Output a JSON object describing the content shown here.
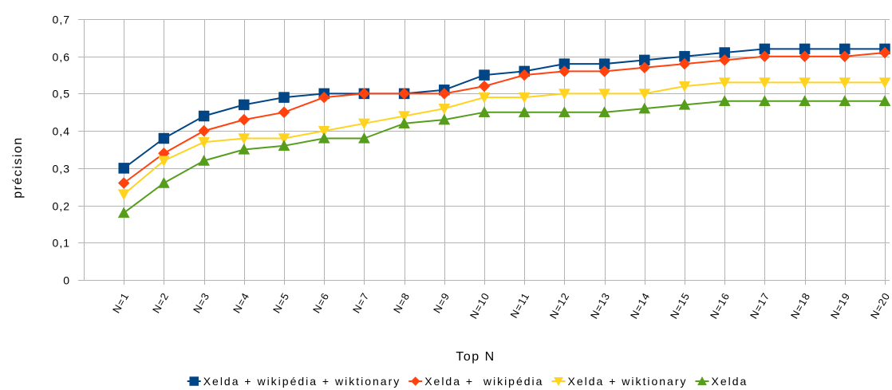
{
  "chart_data": {
    "type": "line",
    "xlabel": "Top N",
    "ylabel": "précision",
    "categories": [
      "N=1",
      "N=2",
      "N=3",
      "N=4",
      "N=5",
      "N=6",
      "N=7",
      "N=8",
      "N=9",
      "N=10",
      "N=11",
      "N=12",
      "N=13",
      "N=14",
      "N=15",
      "N=16",
      "N=17",
      "N=18",
      "N=19",
      "N=20"
    ],
    "ylim": [
      0,
      0.7
    ],
    "yticks": [
      0,
      0.1,
      0.2,
      0.3,
      0.4,
      0.5,
      0.6,
      0.7
    ],
    "ytick_labels": [
      "0",
      "0,1",
      "0,2",
      "0,3",
      "0,4",
      "0,5",
      "0,6",
      "0,7"
    ],
    "grid": true,
    "legend_position": "bottom",
    "series": [
      {
        "name": "Xelda + wikipédia + wiktionary",
        "color": "#004586",
        "marker": "square",
        "values": [
          0.3,
          0.38,
          0.44,
          0.47,
          0.49,
          0.5,
          0.5,
          0.5,
          0.51,
          0.55,
          0.56,
          0.58,
          0.58,
          0.59,
          0.6,
          0.61,
          0.62,
          0.62,
          0.62,
          0.62
        ]
      },
      {
        "name": "Xelda +  wikipédia",
        "color": "#ff420e",
        "marker": "diamond",
        "values": [
          0.26,
          0.34,
          0.4,
          0.43,
          0.45,
          0.49,
          0.5,
          0.5,
          0.5,
          0.52,
          0.55,
          0.56,
          0.56,
          0.57,
          0.58,
          0.59,
          0.6,
          0.6,
          0.6,
          0.61
        ]
      },
      {
        "name": "Xelda + wiktionary",
        "color": "#ffd320",
        "marker": "triangle-down",
        "values": [
          0.23,
          0.32,
          0.37,
          0.38,
          0.38,
          0.4,
          0.42,
          0.44,
          0.46,
          0.49,
          0.49,
          0.5,
          0.5,
          0.5,
          0.52,
          0.53,
          0.53,
          0.53,
          0.53,
          0.53
        ]
      },
      {
        "name": "Xelda",
        "color": "#579d1c",
        "marker": "triangle-up",
        "values": [
          0.18,
          0.26,
          0.32,
          0.35,
          0.36,
          0.38,
          0.38,
          0.42,
          0.43,
          0.45,
          0.45,
          0.45,
          0.45,
          0.46,
          0.47,
          0.48,
          0.48,
          0.48,
          0.48,
          0.48
        ]
      }
    ]
  }
}
